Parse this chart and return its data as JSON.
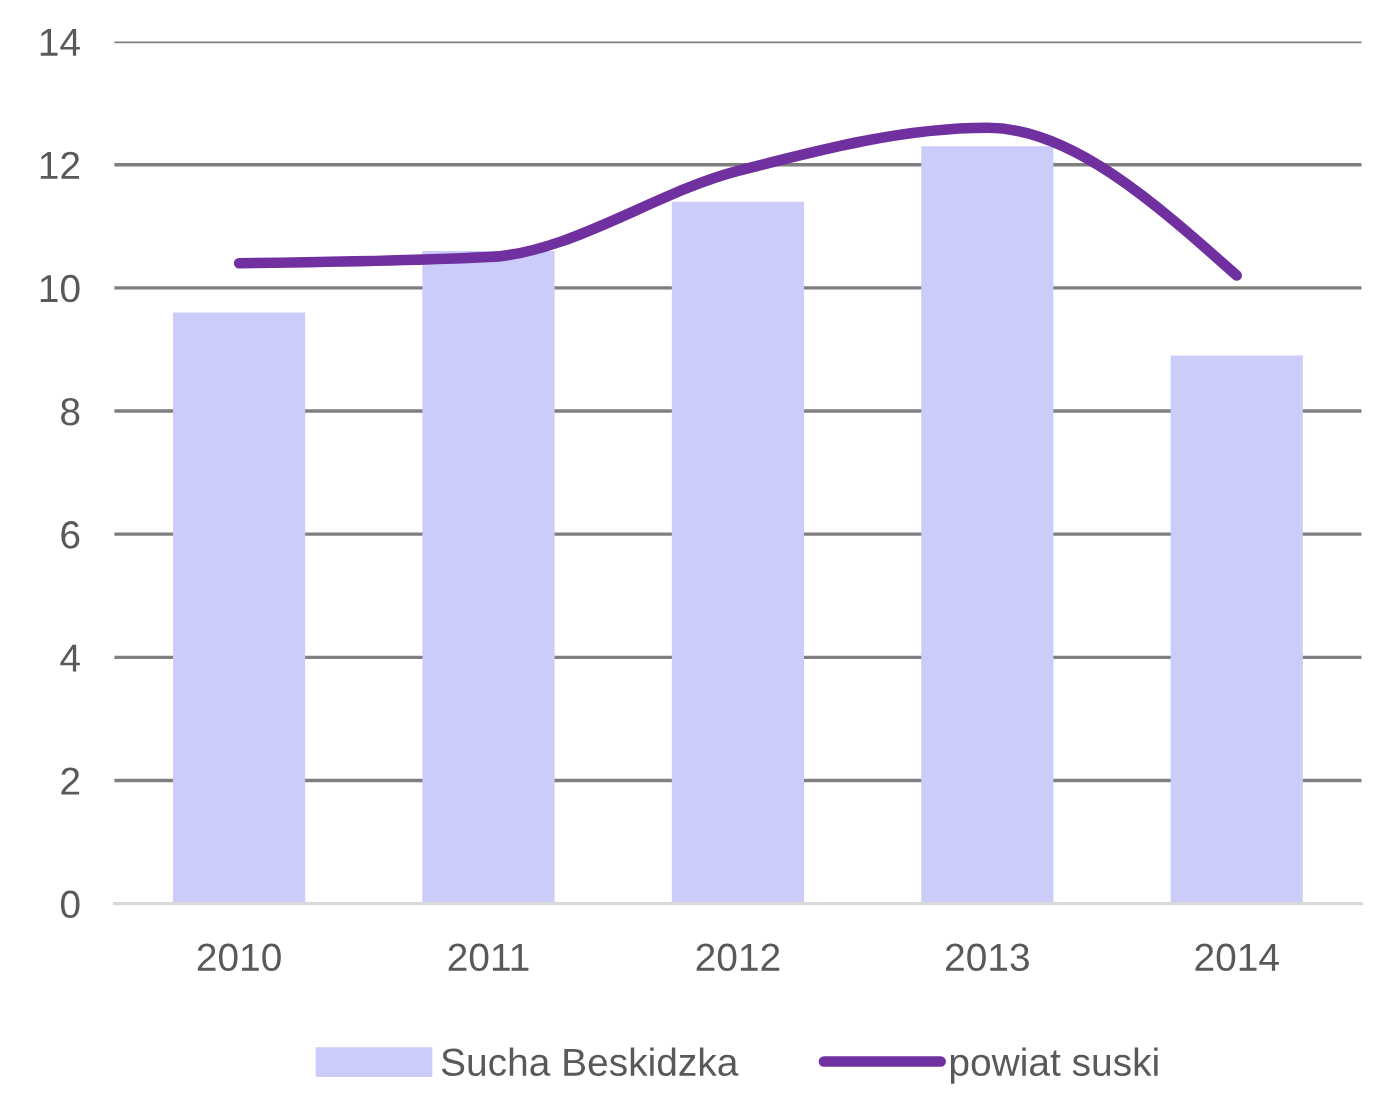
{
  "chart_data": {
    "type": "bar",
    "categories": [
      "2010",
      "2011",
      "2012",
      "2013",
      "2014"
    ],
    "series": [
      {
        "name": "Sucha Beskidzka",
        "color": "#ccccfb",
        "values": [
          9.6,
          10.6,
          11.4,
          12.3,
          8.9
        ]
      },
      {
        "name": "powiat suski",
        "type": "line",
        "color": "#7030a0",
        "values": [
          10.4,
          10.5,
          11.9,
          12.6,
          10.2
        ]
      }
    ],
    "ylim": [
      0,
      14
    ],
    "yticks": [
      0,
      2,
      4,
      6,
      8,
      10,
      12,
      14
    ],
    "grid": "y",
    "legend": "bottom",
    "marker": "none",
    "line_style": "solid"
  }
}
